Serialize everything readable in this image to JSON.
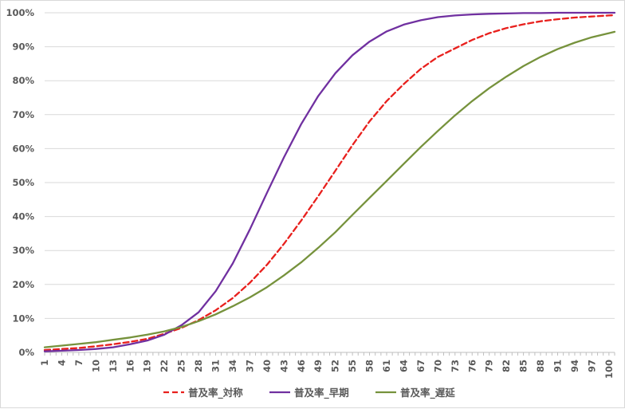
{
  "chart_data": {
    "type": "line",
    "title": "",
    "xlabel": "",
    "ylabel": "",
    "x_range": [
      1,
      101
    ],
    "x_tick_labels": [
      "1",
      "4",
      "7",
      "10",
      "13",
      "16",
      "19",
      "22",
      "25",
      "28",
      "31",
      "34",
      "37",
      "40",
      "43",
      "46",
      "49",
      "52",
      "55",
      "58",
      "61",
      "64",
      "67",
      "70",
      "73",
      "76",
      "79",
      "82",
      "85",
      "88",
      "91",
      "94",
      "97",
      "100"
    ],
    "ylim": [
      0,
      1
    ],
    "y_tick_labels": [
      "0%",
      "10%",
      "20%",
      "30%",
      "40%",
      "50%",
      "60%",
      "70%",
      "80%",
      "90%",
      "100%"
    ],
    "grid": "horizontal",
    "legend_position": "bottom",
    "series": [
      {
        "name": "普及率_対称",
        "color": "#e8201d",
        "style": "dashed",
        "x": [
          1,
          4,
          7,
          10,
          13,
          16,
          19,
          22,
          25,
          28,
          31,
          34,
          37,
          40,
          43,
          46,
          49,
          52,
          55,
          58,
          61,
          64,
          67,
          70,
          73,
          76,
          79,
          82,
          85,
          88,
          91,
          94,
          97,
          100,
          101
        ],
        "values": [
          0.007,
          0.01,
          0.013,
          0.018,
          0.024,
          0.031,
          0.04,
          0.055,
          0.072,
          0.095,
          0.124,
          0.16,
          0.205,
          0.258,
          0.32,
          0.388,
          0.46,
          0.535,
          0.61,
          0.68,
          0.74,
          0.79,
          0.835,
          0.87,
          0.895,
          0.92,
          0.94,
          0.955,
          0.966,
          0.975,
          0.981,
          0.986,
          0.989,
          0.992,
          0.993
        ]
      },
      {
        "name": "普及率_早期",
        "color": "#7030a0",
        "style": "solid",
        "x": [
          1,
          4,
          7,
          10,
          13,
          16,
          19,
          22,
          25,
          28,
          31,
          34,
          37,
          40,
          43,
          46,
          49,
          52,
          55,
          58,
          61,
          64,
          67,
          70,
          73,
          76,
          79,
          82,
          85,
          88,
          91,
          94,
          97,
          100,
          101
        ],
        "values": [
          0.003,
          0.005,
          0.007,
          0.01,
          0.015,
          0.024,
          0.035,
          0.052,
          0.08,
          0.118,
          0.18,
          0.262,
          0.362,
          0.47,
          0.575,
          0.672,
          0.755,
          0.822,
          0.875,
          0.915,
          0.945,
          0.965,
          0.978,
          0.987,
          0.992,
          0.995,
          0.997,
          0.998,
          0.999,
          0.999,
          1.0,
          1.0,
          1.0,
          1.0,
          1.0
        ]
      },
      {
        "name": "普及率_遅延",
        "color": "#76923c",
        "style": "solid",
        "x": [
          1,
          4,
          7,
          10,
          13,
          16,
          19,
          22,
          25,
          28,
          31,
          34,
          37,
          40,
          43,
          46,
          49,
          52,
          55,
          58,
          61,
          64,
          67,
          70,
          73,
          76,
          79,
          82,
          85,
          88,
          91,
          94,
          97,
          100,
          101
        ],
        "values": [
          0.015,
          0.02,
          0.025,
          0.03,
          0.037,
          0.044,
          0.052,
          0.062,
          0.075,
          0.092,
          0.112,
          0.136,
          0.162,
          0.192,
          0.227,
          0.265,
          0.308,
          0.354,
          0.405,
          0.455,
          0.505,
          0.555,
          0.605,
          0.652,
          0.698,
          0.74,
          0.778,
          0.812,
          0.843,
          0.87,
          0.893,
          0.912,
          0.928,
          0.94,
          0.944
        ]
      }
    ]
  }
}
